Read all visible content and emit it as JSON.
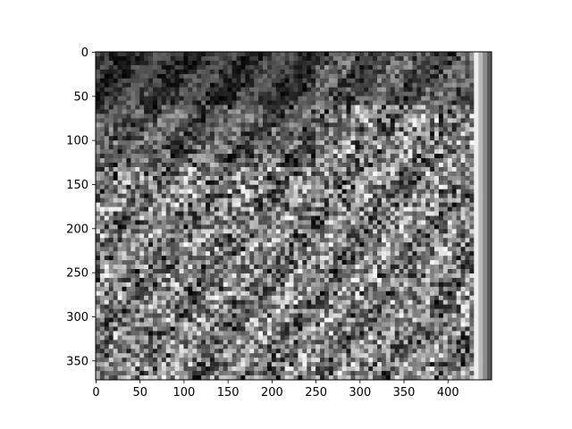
{
  "chart_data": {
    "type": "heatmap",
    "title": "",
    "xlabel": "",
    "ylabel": "",
    "colormap": "gray",
    "image_width": 450,
    "image_height": 372,
    "xlim": [
      -0.5,
      449.5
    ],
    "ylim": [
      371.5,
      -0.5
    ],
    "x_ticks": [
      0,
      50,
      100,
      150,
      200,
      250,
      300,
      350,
      400
    ],
    "y_ticks": [
      0,
      50,
      100,
      150,
      200,
      250,
      300,
      350
    ],
    "x_tick_labels": [
      "0",
      "50",
      "100",
      "150",
      "200",
      "250",
      "300",
      "350",
      "400"
    ],
    "y_tick_labels": [
      "0",
      "50",
      "100",
      "150",
      "200",
      "250",
      "300",
      "350"
    ],
    "grid": false,
    "legend": "none"
  },
  "colors": {
    "background": "#ffffff",
    "axes_frame": "#000000",
    "image_dark": "#0a0a0a",
    "image_light": "#f0f0f0"
  }
}
